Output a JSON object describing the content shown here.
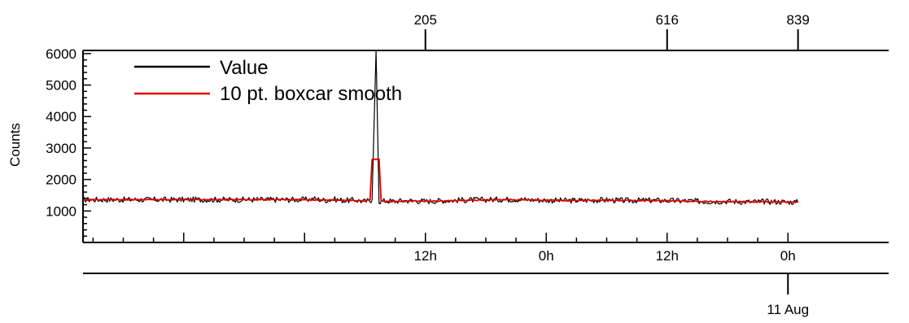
{
  "chart_data": {
    "type": "line",
    "title": "",
    "ylabel": "Counts",
    "xlabel": "",
    "ylim": [
      0,
      6100
    ],
    "yticks": [
      1000,
      2000,
      3000,
      4000,
      5000,
      6000
    ],
    "x_time_axis": {
      "range_hours": [
        -70,
        10
      ],
      "tick_labels": [
        {
          "hour": -36,
          "label": "12h"
        },
        {
          "hour": -24,
          "label": "0h"
        },
        {
          "hour": -12,
          "label": "12h"
        },
        {
          "hour": 0,
          "label": "0h"
        }
      ]
    },
    "top_axis": {
      "ticks": [
        {
          "hour": -36,
          "label": "205"
        },
        {
          "hour": -12,
          "label": "616"
        },
        {
          "hour": 1,
          "label": "839"
        }
      ]
    },
    "date_axis": {
      "ticks": [
        {
          "hour": 0,
          "label": "11 Aug"
        }
      ]
    },
    "legend_placement": "top-left",
    "series": [
      {
        "name": "Value",
        "color": "#000000",
        "points": [
          [
            -48,
            1360
          ],
          [
            -47,
            1390
          ],
          [
            -46,
            1340
          ],
          [
            -45,
            1370
          ],
          [
            -44,
            1330
          ],
          [
            -43,
            1350
          ],
          [
            -42,
            1300
          ],
          [
            -41.3,
            1350
          ],
          [
            -40.9,
            6100
          ],
          [
            -40.6,
            1300
          ],
          [
            -40,
            1320
          ],
          [
            -39,
            1310
          ],
          [
            -38,
            1330
          ],
          [
            -37,
            1320
          ],
          [
            -36,
            1310
          ],
          [
            -34,
            1330
          ],
          [
            -32,
            1350
          ],
          [
            -30,
            1360
          ],
          [
            -28,
            1370
          ],
          [
            -26,
            1360
          ],
          [
            -24,
            1340
          ],
          [
            -22,
            1330
          ],
          [
            -20,
            1340
          ],
          [
            -18,
            1350
          ],
          [
            -16,
            1330
          ],
          [
            -14,
            1340
          ],
          [
            -12,
            1330
          ],
          [
            -10,
            1320
          ],
          [
            -8,
            1300
          ],
          [
            -6,
            1310
          ],
          [
            -4,
            1290
          ],
          [
            -2,
            1300
          ],
          [
            0,
            1290
          ],
          [
            1,
            1280
          ]
        ]
      },
      {
        "name": "10 pt. boxcar smooth",
        "color": "#e00000",
        "points": [
          [
            -48,
            1360
          ],
          [
            -46,
            1350
          ],
          [
            -44,
            1350
          ],
          [
            -42,
            1320
          ],
          [
            -41.5,
            1360
          ],
          [
            -41.3,
            2650
          ],
          [
            -40.6,
            2650
          ],
          [
            -40.4,
            1330
          ],
          [
            -40,
            1300
          ],
          [
            -38,
            1310
          ],
          [
            -36,
            1310
          ],
          [
            -34,
            1320
          ],
          [
            -32,
            1340
          ],
          [
            -30,
            1350
          ],
          [
            -28,
            1360
          ],
          [
            -26,
            1350
          ],
          [
            -24,
            1340
          ],
          [
            -22,
            1330
          ],
          [
            -20,
            1340
          ],
          [
            -18,
            1340
          ],
          [
            -16,
            1330
          ],
          [
            -14,
            1330
          ],
          [
            -12,
            1330
          ],
          [
            -10,
            1310
          ],
          [
            -8,
            1300
          ],
          [
            -6,
            1300
          ],
          [
            -4,
            1290
          ],
          [
            -2,
            1290
          ],
          [
            0,
            1280
          ],
          [
            1,
            1280
          ]
        ]
      }
    ]
  },
  "colors": {
    "axis": "#000000",
    "value_line": "#000000",
    "smooth_line": "#e00000"
  }
}
